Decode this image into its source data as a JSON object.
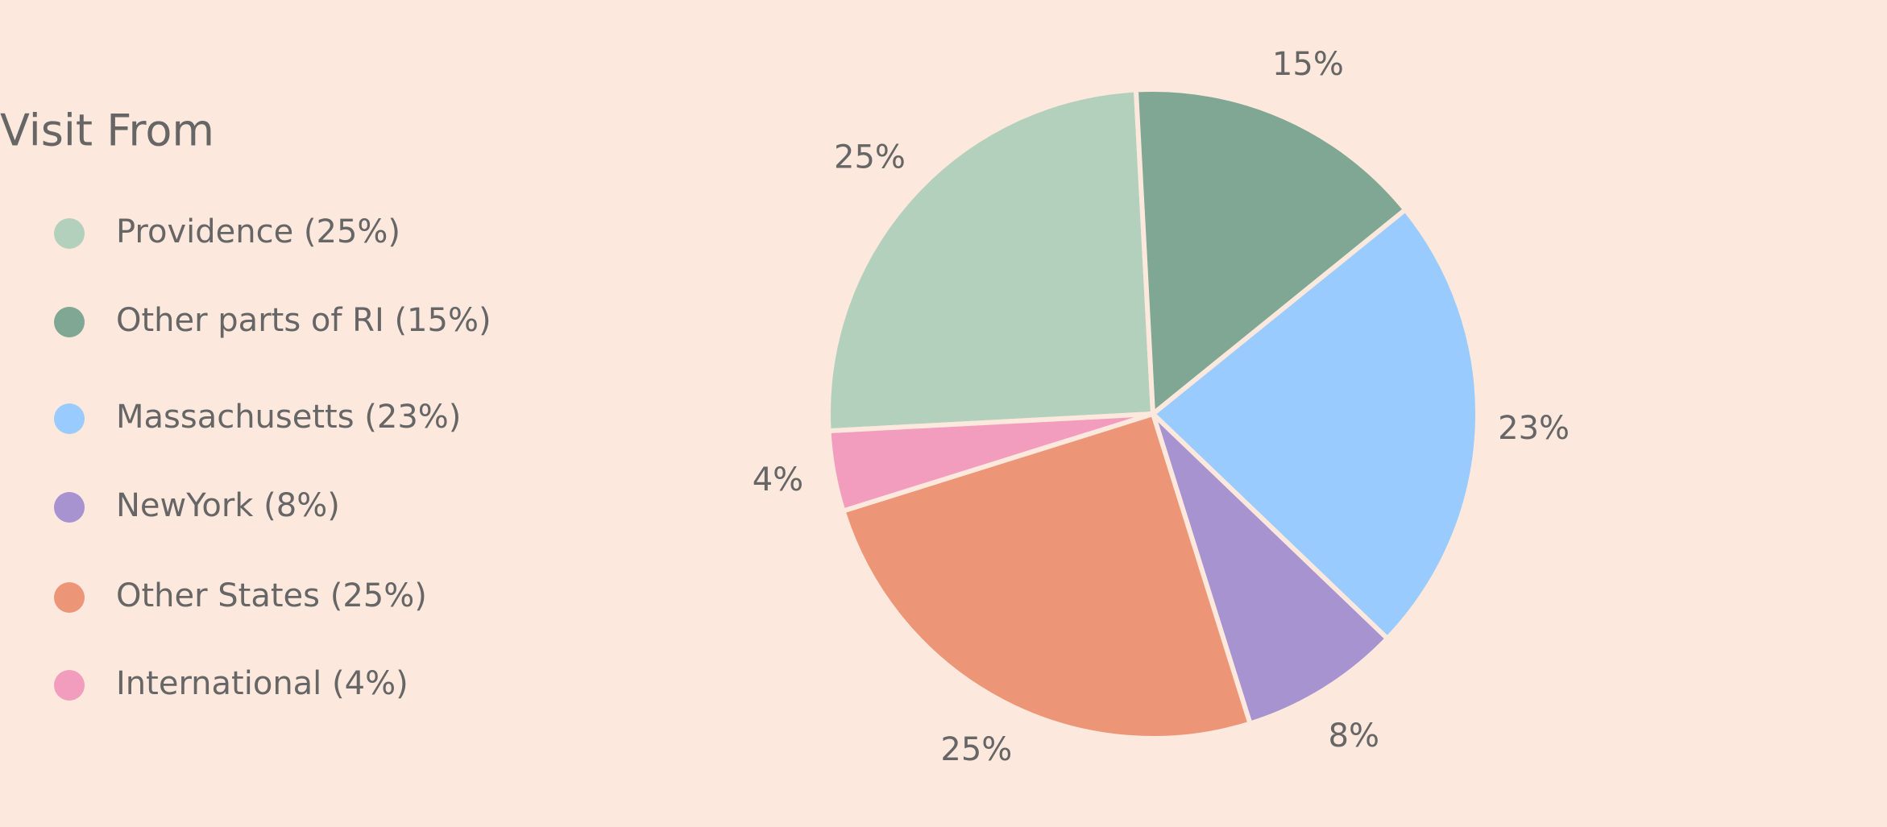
{
  "chart_data": {
    "type": "pie",
    "title": "Visit From",
    "categories": [
      "Providence (25%)",
      "Other parts of RI (15%)",
      "Massachusetts (23%)",
      "NewYork (8%)",
      "Other States (25%)",
      "International (4%)"
    ],
    "values": [
      25,
      15,
      23,
      8,
      25,
      4
    ],
    "value_labels": [
      "25%",
      "15%",
      "23%",
      "8%",
      "25%",
      "4%"
    ],
    "colors": [
      "#b3d0bd",
      "#7fa793",
      "#99cbff",
      "#a693d0",
      "#ed9677",
      "#f29dbd"
    ]
  }
}
